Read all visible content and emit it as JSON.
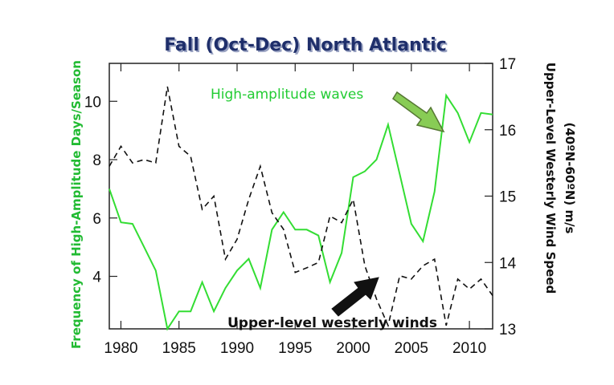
{
  "chart_data": {
    "type": "line",
    "title": "Fall (Oct-Dec) North Atlantic",
    "ylabel": "Frequency of High-Amplitude Days/Season",
    "y2label_line1": "Upper-Level Westerly Wind Speed",
    "y2label_line2": "(40ºN-60ºN) m/s",
    "xlim": [
      1979,
      2012
    ],
    "ylim": [
      2.2,
      11.3
    ],
    "y2lim": [
      13,
      17
    ],
    "xticks": [
      "1980",
      "1985",
      "1990",
      "1995",
      "2000",
      "2005",
      "2010"
    ],
    "yticks": [
      "4",
      "6",
      "8",
      "10"
    ],
    "y2ticks": [
      "13",
      "14",
      "15",
      "16",
      "17"
    ],
    "series": [
      {
        "name": "High-amplitude waves",
        "axis": "left",
        "color": "#33dd33",
        "style": "solid",
        "x": [
          1979,
          1980,
          1981,
          1982,
          1983,
          1984,
          1985,
          1986,
          1987,
          1988,
          1989,
          1990,
          1991,
          1992,
          1993,
          1994,
          1995,
          1996,
          1997,
          1998,
          1999,
          2000,
          2001,
          2002,
          2003,
          2004,
          2005,
          2006,
          2007,
          2008,
          2009,
          2010,
          2011,
          2012
        ],
        "y": [
          7.0,
          5.85,
          5.8,
          5.0,
          4.2,
          2.2,
          2.8,
          2.8,
          3.8,
          2.8,
          3.6,
          4.2,
          4.6,
          3.6,
          5.6,
          6.2,
          5.6,
          5.6,
          5.4,
          3.8,
          4.8,
          7.4,
          7.6,
          8.0,
          9.2,
          7.5,
          5.8,
          5.2,
          6.9,
          10.2,
          9.6,
          8.6,
          9.6,
          9.55
        ]
      },
      {
        "name": "Upper-level westerly winds",
        "axis": "right",
        "color": "#111111",
        "style": "dashed",
        "x": [
          1979,
          1980,
          1981,
          1982,
          1983,
          1984,
          1985,
          1986,
          1987,
          1988,
          1989,
          1990,
          1991,
          1992,
          1993,
          1994,
          1995,
          1996,
          1997,
          1998,
          1999,
          2000,
          2001,
          2002,
          2003,
          2004,
          2005,
          2006,
          2007,
          2008,
          2009,
          2010,
          2011,
          2012
        ],
        "y": [
          15.45,
          15.75,
          15.5,
          15.55,
          15.5,
          16.65,
          15.75,
          15.6,
          14.8,
          15.0,
          14.05,
          14.35,
          14.95,
          15.45,
          14.75,
          14.5,
          13.85,
          13.92,
          14.0,
          14.7,
          14.6,
          14.95,
          13.95,
          13.45,
          13.05,
          13.8,
          13.75,
          13.95,
          14.05,
          13.05,
          13.75,
          13.6,
          13.75,
          13.5
        ]
      }
    ],
    "annotations": [
      {
        "text": "High-amplitude waves",
        "color": "#22cc33"
      },
      {
        "text": "Upper-level westerly winds",
        "color": "#111111"
      }
    ],
    "grid": false,
    "legend": "none"
  }
}
